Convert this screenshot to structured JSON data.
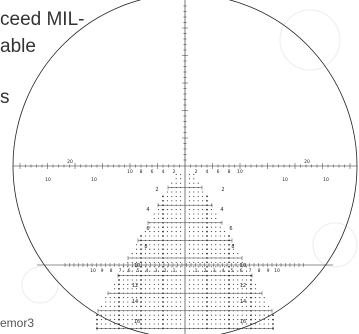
{
  "background_text": {
    "line1": "ceed MIL-",
    "line2": "able",
    "line3": "s",
    "line4": "emor3"
  },
  "reticle": {
    "horizontal_labels": {
      "outer_left": "20",
      "outer_right": "20",
      "far_left": "10",
      "far_right": "10",
      "mid_left": "10",
      "mid_right": "10"
    },
    "upper_tick_labels": [
      "10",
      "8",
      "6",
      "4",
      "2",
      "2",
      "4",
      "6",
      "8",
      "10"
    ],
    "tree_rows": [
      {
        "label": "2"
      },
      {
        "label": "4"
      },
      {
        "label": "6"
      },
      {
        "label": "8"
      },
      {
        "label": "10"
      },
      {
        "label": "12"
      },
      {
        "label": "14"
      },
      {
        "label": "16"
      }
    ],
    "lower_scale_labels": [
      "10",
      "9",
      "8",
      "7",
      "6",
      "5",
      "4",
      "3",
      "2",
      "1",
      "1",
      "2",
      "3",
      "4",
      "5",
      "6",
      "7",
      "8",
      "9",
      "10"
    ]
  }
}
